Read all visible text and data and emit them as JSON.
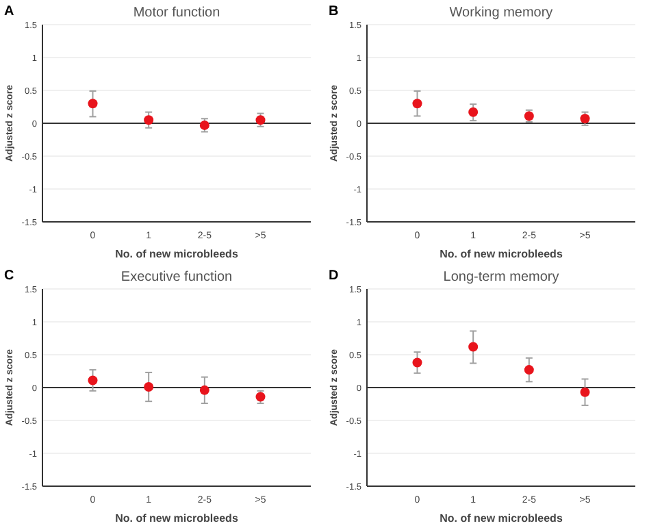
{
  "chart_data": [
    {
      "type": "scatter",
      "title": "Motor function",
      "xlabel": "No. of new microbleeds",
      "ylabel": "Adjusted z score",
      "annotations": [
        "A"
      ],
      "categories": [
        "0",
        "1",
        "2-5",
        ">5"
      ],
      "ylim": [
        -1.5,
        1.5
      ],
      "yticks": [
        -1.5,
        -1,
        -0.5,
        0,
        0.5,
        1,
        1.5
      ],
      "grid": "y",
      "marker": "circle",
      "ref_lines": [
        {
          "axis": "y",
          "value": 0,
          "color": "#333333"
        }
      ],
      "series": [
        {
          "color": "#e8141c",
          "values": [
            0.3,
            0.05,
            -0.03,
            0.05
          ],
          "errors": [
            [
              0.1,
              0.49
            ],
            [
              -0.07,
              0.17
            ],
            [
              -0.13,
              0.07
            ],
            [
              -0.05,
              0.15
            ]
          ]
        }
      ]
    },
    {
      "type": "scatter",
      "title": "Working memory",
      "xlabel": "No. of new microbleeds",
      "ylabel": "Adjusted z score",
      "annotations": [
        "B"
      ],
      "categories": [
        "0",
        "1",
        "2-5",
        ">5"
      ],
      "ylim": [
        -1.5,
        1.5
      ],
      "yticks": [
        -1.5,
        -1,
        -0.5,
        0,
        0.5,
        1,
        1.5
      ],
      "grid": "y",
      "marker": "circle",
      "ref_lines": [
        {
          "axis": "y",
          "value": 0,
          "color": "#333333"
        }
      ],
      "series": [
        {
          "color": "#e8141c",
          "values": [
            0.3,
            0.17,
            0.11,
            0.07
          ],
          "errors": [
            [
              0.11,
              0.49
            ],
            [
              0.04,
              0.29
            ],
            [
              0.02,
              0.2
            ],
            [
              -0.03,
              0.17
            ]
          ]
        }
      ]
    },
    {
      "type": "scatter",
      "title": "Executive function",
      "xlabel": "No. of new microbleeds",
      "ylabel": "Adjusted z score",
      "annotations": [
        "C"
      ],
      "categories": [
        "0",
        "1",
        "2-5",
        ">5"
      ],
      "ylim": [
        -1.5,
        1.5
      ],
      "yticks": [
        -1.5,
        -1,
        -0.5,
        0,
        0.5,
        1,
        1.5
      ],
      "grid": "y",
      "marker": "circle",
      "ref_lines": [
        {
          "axis": "y",
          "value": 0,
          "color": "#333333"
        }
      ],
      "series": [
        {
          "color": "#e8141c",
          "values": [
            0.11,
            0.01,
            -0.04,
            -0.14
          ],
          "errors": [
            [
              -0.05,
              0.27
            ],
            [
              -0.21,
              0.23
            ],
            [
              -0.24,
              0.16
            ],
            [
              -0.24,
              -0.05
            ]
          ]
        }
      ]
    },
    {
      "type": "scatter",
      "title": "Long-term memory",
      "xlabel": "No. of new microbleeds",
      "ylabel": "Adjusted z score",
      "annotations": [
        "D"
      ],
      "categories": [
        "0",
        "1",
        "2-5",
        ">5"
      ],
      "ylim": [
        -1.5,
        1.5
      ],
      "yticks": [
        -1.5,
        -1,
        -0.5,
        0,
        0.5,
        1,
        1.5
      ],
      "grid": "y",
      "marker": "circle",
      "ref_lines": [
        {
          "axis": "y",
          "value": 0,
          "color": "#333333"
        }
      ],
      "series": [
        {
          "color": "#e8141c",
          "values": [
            0.38,
            0.62,
            0.27,
            -0.07
          ],
          "errors": [
            [
              0.22,
              0.54
            ],
            [
              0.37,
              0.86
            ],
            [
              0.09,
              0.45
            ],
            [
              -0.27,
              0.13
            ]
          ]
        }
      ]
    }
  ]
}
